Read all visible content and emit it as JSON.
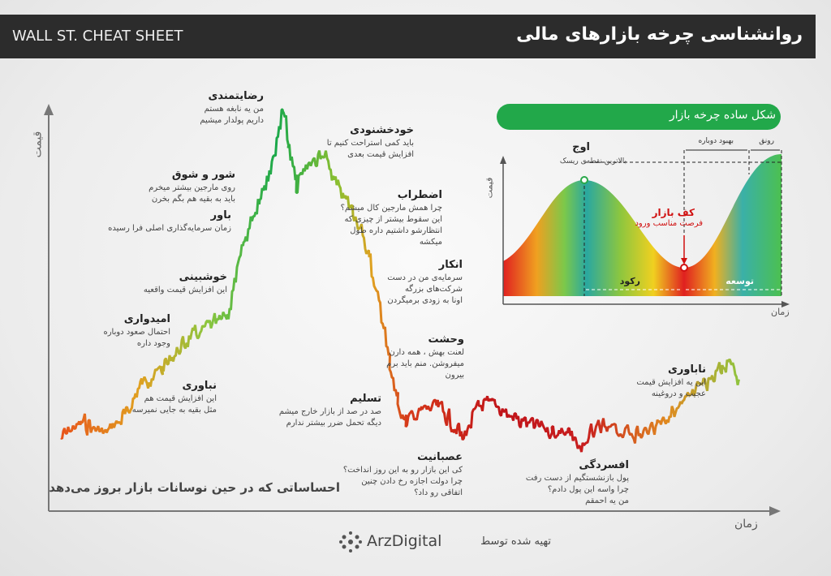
{
  "header": {
    "brand": "WALL ST. CHEAT SHEET",
    "title": "روانشناسی چرخه بازارهای مالی"
  },
  "main_chart": {
    "y_label": "قیمت",
    "x_label": "زمان",
    "caption": "احساساتی که در حین نوسانات بازار بروز می‌دهد",
    "stages": [
      {
        "title": "نباوری",
        "lines": [
          "این افزایش قیمت هم",
          "مثل بقیه به جایی نمیرسه"
        ]
      },
      {
        "title": "امیدواری",
        "lines": [
          "احتمال صعود دوباره",
          "وجود داره"
        ]
      },
      {
        "title": "خوشبینی",
        "lines": [
          "این افزایش قیمت واقعیه"
        ]
      },
      {
        "title": "باور",
        "lines": [
          "زمان سرمایه‌گذاری اصلی فرا رسیده"
        ]
      },
      {
        "title": "شور و شوق",
        "lines": [
          "روی مارجین بیشتر میخرم",
          "باید به بقیه هم بگم بخرن"
        ]
      },
      {
        "title": "رضایتمندی",
        "lines": [
          "من یه نابغه هستم",
          "داریم پولدار میشیم"
        ]
      },
      {
        "title": "خودخشنودی",
        "lines": [
          "باید کمی استراحت کنیم تا",
          "افزایش قیمت بعدی"
        ]
      },
      {
        "title": "اضطراب",
        "lines": [
          "چرا همش مارجین کال میشم؟",
          "این سقوط بیشتر از چیزی که",
          "انتظارشو داشتیم داره طول",
          "میکشه"
        ]
      },
      {
        "title": "انکار",
        "lines": [
          "سرمایه‌ی من در دست",
          "شرکت‌های بزرگه",
          "اونا به زودی برمیگردن"
        ]
      },
      {
        "title": "وحشت",
        "lines": [
          "لعنت بهش ، همه دارن",
          "میفروشن. منم باید برم",
          "بیرون"
        ]
      },
      {
        "title": "تسلیم",
        "lines": [
          "صد در صد از بازار خارج میشم",
          "دیگه تحمل ضرر بیشتر ندارم"
        ]
      },
      {
        "title": "عصبانیت",
        "lines": [
          "کی این بازار رو به این روز انداخت؟",
          "چرا دولت اجازه رخ دادن چنین",
          "اتفاقی رو داد؟"
        ]
      },
      {
        "title": "افسردگی",
        "lines": [
          "پول بازنشستگیم از دست رفت",
          "چرا واسه این پول دادم؟",
          "من یه احمقم"
        ]
      },
      {
        "title": "ناباوری",
        "lines": [
          "این یه افزایش قیمت",
          "عجیب و دروغینه"
        ]
      }
    ]
  },
  "inset": {
    "title": "شکل ساده چرخه بازار",
    "y_label": "قیمت",
    "x_label": "زمان",
    "peak": "اوج",
    "peak_note": "بالاترین نقطه‌ی ریسک",
    "bottom": "کف بازار",
    "bottom_note": "فرصت مناسب ورود",
    "recession": "رکود",
    "expansion": "توسعه",
    "recovery": "بهبود دوباره",
    "boom": "رونق"
  },
  "footer": {
    "prepared_by": "تهیه شده توسط",
    "logo": "ArzDigital"
  }
}
